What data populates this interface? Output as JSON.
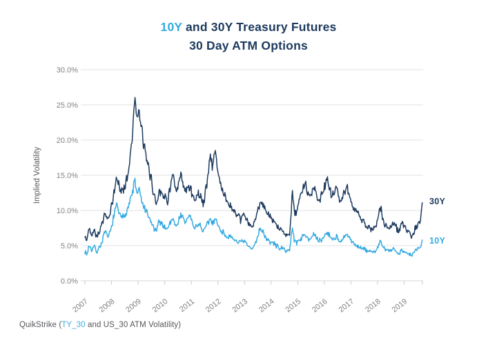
{
  "page": {
    "title": {
      "highlight": "10Y",
      "line1_rest": " and 30Y Treasury Futures",
      "line2": "30 Day ATM Options"
    },
    "series_labels": {
      "thirty": "30Y",
      "ten": "10Y"
    },
    "footer": {
      "prefix": "QuikStrike (",
      "link": "TY_30",
      "suffix": " and US_30 ATM Volatility)"
    }
  },
  "colors": {
    "navy": "#1D3A5E",
    "light_blue": "#35AAE0",
    "gridline": "#E1E1E1",
    "axis_line": "#D5D5D5",
    "tick_mark": "#C9C9C9",
    "tick_label": "#808184",
    "axis_label": "#58595B",
    "footer_text": "#55565A"
  },
  "chart_data": {
    "type": "line",
    "title": "10Y and 30Y Treasury Futures 30 Day ATM Options",
    "xlabel": "",
    "ylabel": "Implied Volatility",
    "ylim": [
      0,
      30
    ],
    "ytick_values": [
      0,
      5,
      10,
      15,
      20,
      25,
      30
    ],
    "ytick_labels": [
      "0.0%",
      "5.0%",
      "10.0%",
      "15.0%",
      "20.0%",
      "25.0%",
      "30.0%"
    ],
    "xticks": [
      2007,
      2008,
      2009,
      2010,
      2011,
      2012,
      2013,
      2014,
      2015,
      2016,
      2017,
      2018,
      2019
    ],
    "x_range": [
      2007.0,
      2019.68
    ],
    "grid": "horizontal",
    "legend_position": "right-of-line-end",
    "noise": {
      "base": 0.16,
      "value_scale": 0.055
    },
    "series": [
      {
        "name": "30Y",
        "color": "#1D3A5E",
        "seed": 42,
        "points": [
          [
            2007.0,
            6.2
          ],
          [
            2007.08,
            5.7
          ],
          [
            2007.15,
            7.6
          ],
          [
            2007.25,
            6.6
          ],
          [
            2007.35,
            7.3
          ],
          [
            2007.45,
            6.3
          ],
          [
            2007.55,
            7.0
          ],
          [
            2007.65,
            8.3
          ],
          [
            2007.75,
            9.6
          ],
          [
            2007.85,
            8.6
          ],
          [
            2007.95,
            9.5
          ],
          [
            2008.05,
            11.5
          ],
          [
            2008.2,
            14.8
          ],
          [
            2008.35,
            12.6
          ],
          [
            2008.5,
            13.4
          ],
          [
            2008.65,
            15.8
          ],
          [
            2008.78,
            20.5
          ],
          [
            2008.88,
            27.3
          ],
          [
            2008.95,
            22.5
          ],
          [
            2009.03,
            24.0
          ],
          [
            2009.15,
            21.0
          ],
          [
            2009.3,
            17.2
          ],
          [
            2009.42,
            15.8
          ],
          [
            2009.55,
            13.2
          ],
          [
            2009.68,
            10.8
          ],
          [
            2009.8,
            13.0
          ],
          [
            2009.95,
            12.2
          ],
          [
            2010.1,
            11.3
          ],
          [
            2010.3,
            15.0
          ],
          [
            2010.45,
            12.2
          ],
          [
            2010.6,
            15.2
          ],
          [
            2010.75,
            12.6
          ],
          [
            2010.95,
            13.6
          ],
          [
            2011.1,
            11.4
          ],
          [
            2011.3,
            12.6
          ],
          [
            2011.45,
            10.8
          ],
          [
            2011.6,
            14.2
          ],
          [
            2011.7,
            17.8
          ],
          [
            2011.8,
            16.2
          ],
          [
            2011.9,
            18.9
          ],
          [
            2012.0,
            15.2
          ],
          [
            2012.15,
            13.2
          ],
          [
            2012.3,
            11.6
          ],
          [
            2012.5,
            10.4
          ],
          [
            2012.65,
            9.6
          ],
          [
            2012.85,
            8.6
          ],
          [
            2013.0,
            9.6
          ],
          [
            2013.15,
            8.0
          ],
          [
            2013.3,
            7.6
          ],
          [
            2013.45,
            9.2
          ],
          [
            2013.6,
            11.5
          ],
          [
            2013.75,
            10.4
          ],
          [
            2013.9,
            9.2
          ],
          [
            2014.1,
            8.4
          ],
          [
            2014.3,
            7.4
          ],
          [
            2014.5,
            6.8
          ],
          [
            2014.7,
            6.6
          ],
          [
            2014.8,
            12.6
          ],
          [
            2014.88,
            9.5
          ],
          [
            2015.0,
            10.2
          ],
          [
            2015.1,
            12.2
          ],
          [
            2015.3,
            13.8
          ],
          [
            2015.45,
            11.8
          ],
          [
            2015.6,
            13.4
          ],
          [
            2015.8,
            11.4
          ],
          [
            2015.95,
            12.4
          ],
          [
            2016.1,
            14.6
          ],
          [
            2016.3,
            11.8
          ],
          [
            2016.45,
            13.4
          ],
          [
            2016.6,
            11.2
          ],
          [
            2016.85,
            13.2
          ],
          [
            2017.0,
            11.2
          ],
          [
            2017.2,
            10.0
          ],
          [
            2017.4,
            8.6
          ],
          [
            2017.6,
            7.8
          ],
          [
            2017.8,
            7.2
          ],
          [
            2017.95,
            7.6
          ],
          [
            2018.1,
            10.6
          ],
          [
            2018.25,
            8.0
          ],
          [
            2018.45,
            7.4
          ],
          [
            2018.6,
            8.4
          ],
          [
            2018.78,
            7.0
          ],
          [
            2018.95,
            8.2
          ],
          [
            2019.1,
            7.0
          ],
          [
            2019.28,
            6.3
          ],
          [
            2019.42,
            7.4
          ],
          [
            2019.55,
            8.0
          ],
          [
            2019.62,
            8.8
          ],
          [
            2019.68,
            11.1
          ]
        ]
      },
      {
        "name": "10Y",
        "color": "#35AAE0",
        "seed": 7,
        "points": [
          [
            2007.0,
            4.2
          ],
          [
            2007.08,
            3.7
          ],
          [
            2007.15,
            5.1
          ],
          [
            2007.25,
            4.4
          ],
          [
            2007.35,
            4.9
          ],
          [
            2007.45,
            4.1
          ],
          [
            2007.55,
            4.8
          ],
          [
            2007.65,
            5.6
          ],
          [
            2007.75,
            7.0
          ],
          [
            2007.85,
            6.2
          ],
          [
            2007.95,
            6.8
          ],
          [
            2008.05,
            8.6
          ],
          [
            2008.2,
            10.8
          ],
          [
            2008.35,
            8.8
          ],
          [
            2008.5,
            9.4
          ],
          [
            2008.65,
            10.8
          ],
          [
            2008.78,
            12.4
          ],
          [
            2008.88,
            14.4
          ],
          [
            2008.95,
            12.2
          ],
          [
            2009.03,
            13.0
          ],
          [
            2009.15,
            11.0
          ],
          [
            2009.3,
            9.8
          ],
          [
            2009.42,
            8.8
          ],
          [
            2009.55,
            7.8
          ],
          [
            2009.68,
            6.9
          ],
          [
            2009.8,
            8.6
          ],
          [
            2009.95,
            7.8
          ],
          [
            2010.1,
            7.4
          ],
          [
            2010.3,
            9.0
          ],
          [
            2010.45,
            7.6
          ],
          [
            2010.6,
            9.6
          ],
          [
            2010.75,
            8.2
          ],
          [
            2010.95,
            9.4
          ],
          [
            2011.1,
            7.4
          ],
          [
            2011.3,
            8.2
          ],
          [
            2011.45,
            6.9
          ],
          [
            2011.6,
            8.0
          ],
          [
            2011.7,
            8.8
          ],
          [
            2011.8,
            8.2
          ],
          [
            2011.9,
            9.0
          ],
          [
            2012.0,
            7.8
          ],
          [
            2012.15,
            7.0
          ],
          [
            2012.3,
            6.5
          ],
          [
            2012.5,
            6.0
          ],
          [
            2012.65,
            5.8
          ],
          [
            2012.85,
            5.4
          ],
          [
            2013.0,
            5.6
          ],
          [
            2013.15,
            4.8
          ],
          [
            2013.3,
            4.5
          ],
          [
            2013.45,
            5.8
          ],
          [
            2013.6,
            7.6
          ],
          [
            2013.75,
            6.5
          ],
          [
            2013.9,
            5.6
          ],
          [
            2014.1,
            5.3
          ],
          [
            2014.3,
            4.7
          ],
          [
            2014.5,
            4.4
          ],
          [
            2014.7,
            4.3
          ],
          [
            2014.8,
            7.8
          ],
          [
            2014.88,
            5.6
          ],
          [
            2015.0,
            5.5
          ],
          [
            2015.1,
            6.0
          ],
          [
            2015.3,
            6.6
          ],
          [
            2015.45,
            5.9
          ],
          [
            2015.6,
            6.5
          ],
          [
            2015.8,
            5.6
          ],
          [
            2015.95,
            6.0
          ],
          [
            2016.1,
            7.0
          ],
          [
            2016.3,
            5.8
          ],
          [
            2016.45,
            6.4
          ],
          [
            2016.6,
            5.3
          ],
          [
            2016.85,
            6.7
          ],
          [
            2017.0,
            5.6
          ],
          [
            2017.2,
            5.1
          ],
          [
            2017.4,
            4.6
          ],
          [
            2017.6,
            4.3
          ],
          [
            2017.8,
            4.1
          ],
          [
            2017.95,
            4.3
          ],
          [
            2018.1,
            5.6
          ],
          [
            2018.25,
            4.5
          ],
          [
            2018.45,
            4.2
          ],
          [
            2018.6,
            4.6
          ],
          [
            2018.78,
            3.9
          ],
          [
            2018.95,
            4.4
          ],
          [
            2019.1,
            3.9
          ],
          [
            2019.28,
            3.6
          ],
          [
            2019.42,
            4.3
          ],
          [
            2019.55,
            4.5
          ],
          [
            2019.62,
            4.8
          ],
          [
            2019.68,
            5.8
          ]
        ]
      }
    ]
  }
}
